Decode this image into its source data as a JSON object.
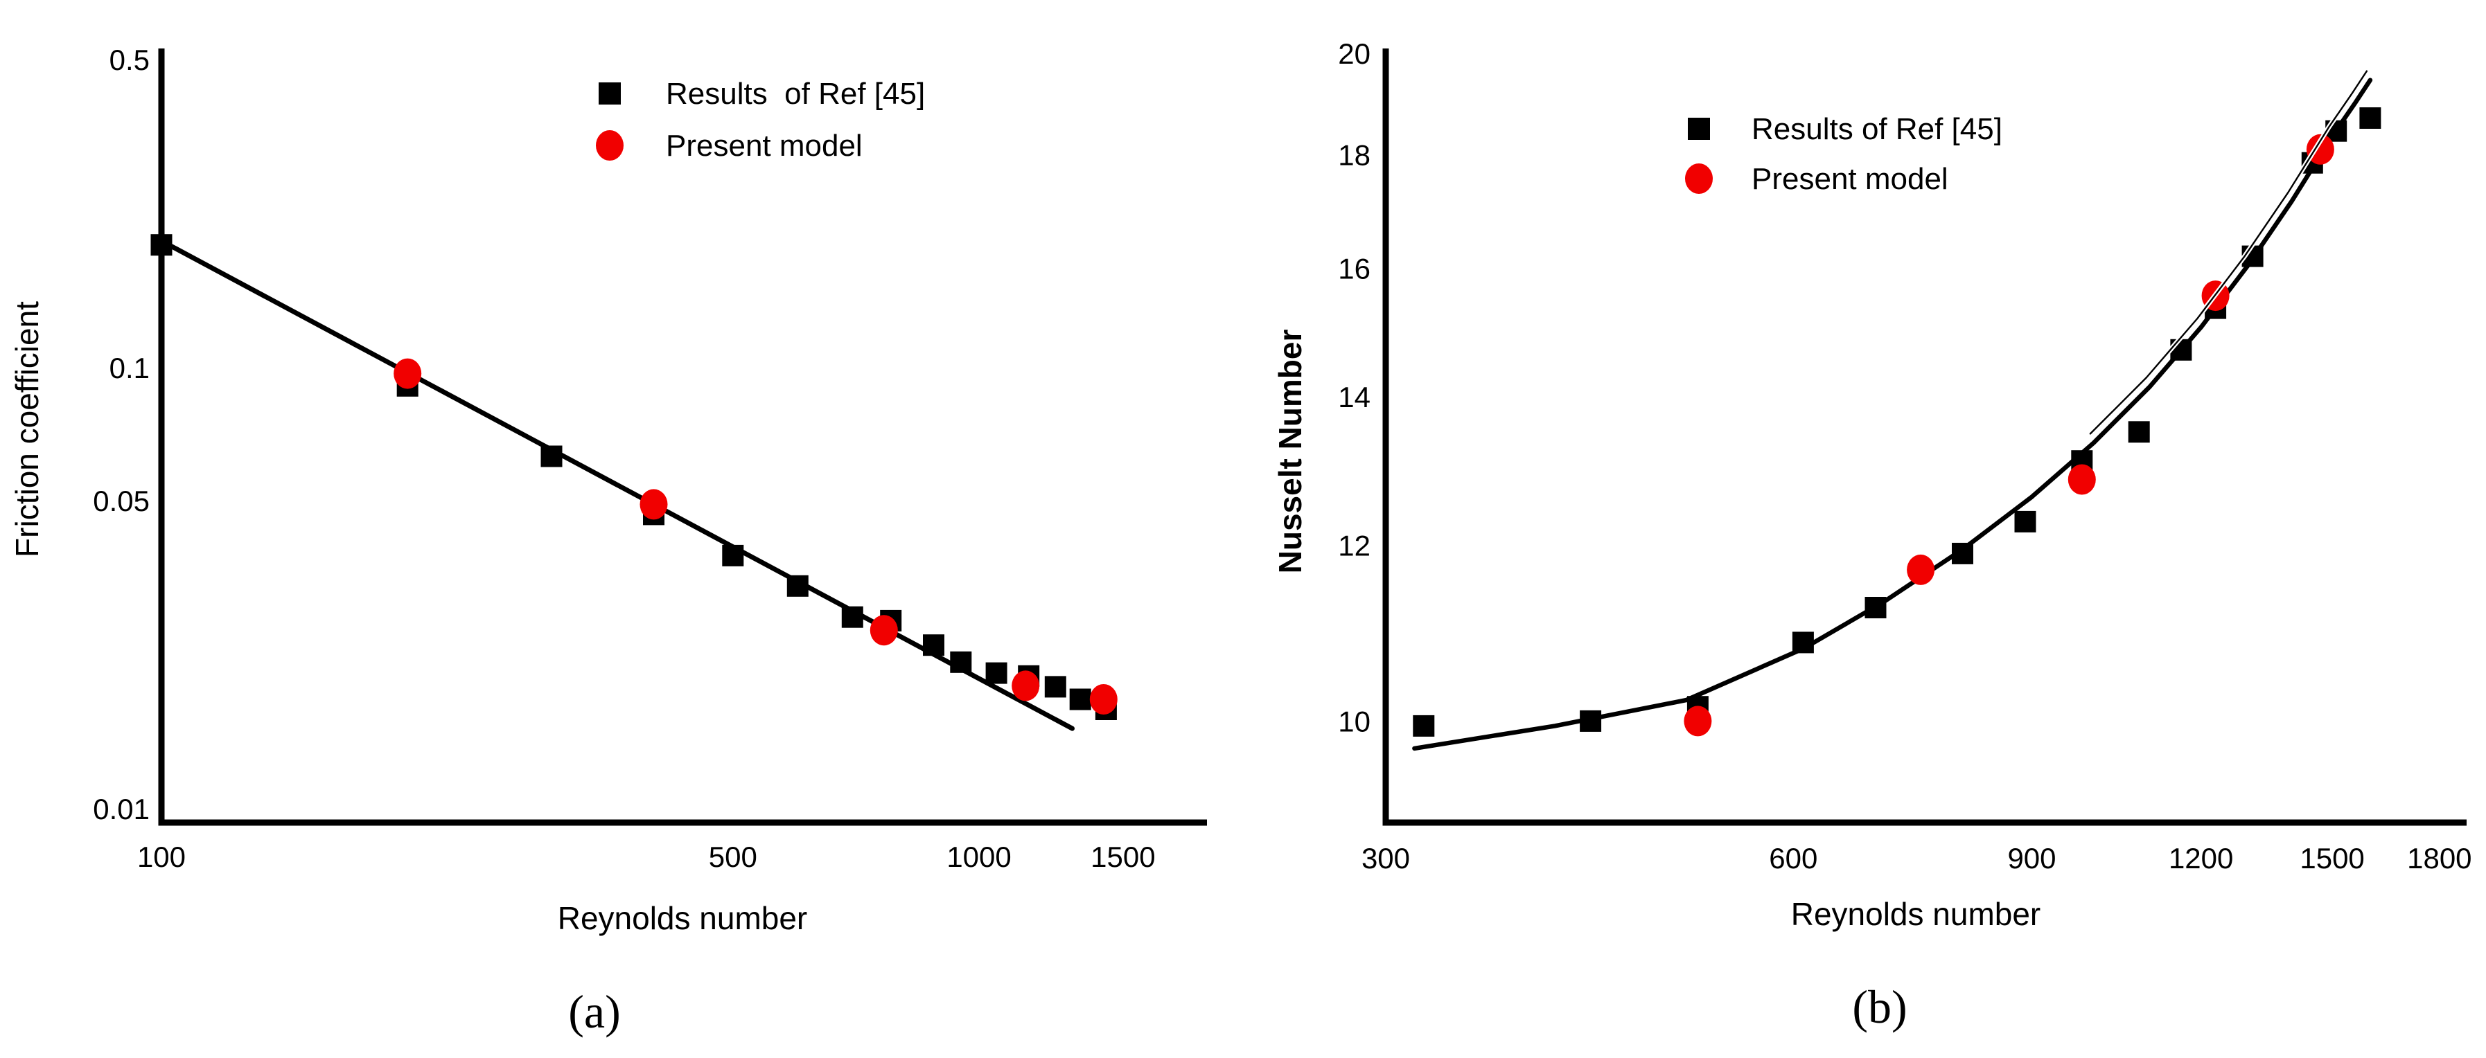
{
  "figure": {
    "background": "#ffffff",
    "text_color": "#000000",
    "marker_black": "#000000",
    "marker_red": "#f10000"
  },
  "chart_data": [
    {
      "type": "scatter",
      "panel": "a",
      "caption": "(a)",
      "xlabel": "Reynolds number",
      "ylabel": "Friction coefficient",
      "xscale": "log",
      "yscale": "log",
      "xlim": [
        100,
        1900
      ],
      "ylim": [
        0.0093,
        0.53
      ],
      "xticks": [
        100,
        500,
        1000,
        1500
      ],
      "yticks": [
        0.5,
        0.1,
        0.05,
        0.01
      ],
      "grid": false,
      "legend_position": "upper-center",
      "series": [
        {
          "name": "Results  of Ref [45]",
          "marker": "square",
          "color": "#000000",
          "points": [
            [
              100,
              0.19
            ],
            [
              200,
              0.091
            ],
            [
              300,
              0.063
            ],
            [
              400,
              0.0465
            ],
            [
              500,
              0.0375
            ],
            [
              600,
              0.032
            ],
            [
              700,
              0.0272
            ],
            [
              780,
              0.0267
            ],
            [
              880,
              0.0235
            ],
            [
              950,
              0.0215
            ],
            [
              1050,
              0.0203
            ],
            [
              1150,
              0.02
            ],
            [
              1240,
              0.0189
            ],
            [
              1330,
              0.0177
            ],
            [
              1430,
              0.0168
            ]
          ]
        },
        {
          "name": "Present model",
          "marker": "circle",
          "color": "#f10000",
          "points": [
            [
              200,
              0.097
            ],
            [
              400,
              0.049
            ],
            [
              765,
              0.0254
            ],
            [
              1140,
              0.019
            ],
            [
              1420,
              0.0177
            ]
          ]
        }
      ],
      "fit_line": {
        "description": "straight trend line in log-log space",
        "points": [
          [
            100,
            0.194
          ],
          [
            1300,
            0.0152
          ]
        ]
      }
    },
    {
      "type": "scatter",
      "panel": "b",
      "caption": "(b)",
      "xlabel": "Reynolds number",
      "ylabel": "Nusselt Number",
      "xscale": "log",
      "yscale": "log",
      "xlim": [
        300,
        1885
      ],
      "ylim": [
        9.0,
        20.1
      ],
      "xticks": [
        300,
        600,
        900,
        1200,
        1500,
        1800
      ],
      "yticks": [
        10,
        12,
        14,
        16,
        18,
        20
      ],
      "grid": false,
      "legend_position": "upper-center",
      "series": [
        {
          "name": "Results of Ref [45]",
          "marker": "square",
          "color": "#000000",
          "points": [
            [
              320,
              9.95
            ],
            [
              425,
              10.0
            ],
            [
              510,
              10.15
            ],
            [
              610,
              10.85
            ],
            [
              690,
              11.25
            ],
            [
              800,
              11.9
            ],
            [
              890,
              12.3
            ],
            [
              980,
              13.1
            ],
            [
              1080,
              13.5
            ],
            [
              1160,
              14.7
            ],
            [
              1230,
              15.35
            ],
            [
              1310,
              16.2
            ],
            [
              1450,
              17.85
            ],
            [
              1510,
              18.45
            ],
            [
              1600,
              18.7
            ]
          ]
        },
        {
          "name": "Present model",
          "marker": "circle",
          "color": "#f10000",
          "points": [
            [
              510,
              10.0
            ],
            [
              745,
              11.7
            ],
            [
              980,
              12.85
            ],
            [
              1230,
              15.55
            ],
            [
              1470,
              18.1
            ]
          ]
        }
      ],
      "fit_line": {
        "description": "rising fit curve",
        "points": [
          [
            315,
            9.72
          ],
          [
            400,
            9.95
          ],
          [
            500,
            10.22
          ],
          [
            610,
            10.78
          ],
          [
            700,
            11.32
          ],
          [
            800,
            11.95
          ],
          [
            900,
            12.62
          ],
          [
            1000,
            13.35
          ],
          [
            1100,
            14.15
          ],
          [
            1200,
            15.05
          ],
          [
            1300,
            16.05
          ],
          [
            1400,
            17.15
          ],
          [
            1500,
            18.35
          ],
          [
            1560,
            19.0
          ],
          [
            1600,
            19.45
          ]
        ]
      }
    }
  ]
}
